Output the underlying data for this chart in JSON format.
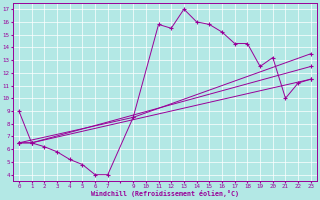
{
  "bg_color": "#b3e8e5",
  "line_color": "#990099",
  "grid_color": "#ffffff",
  "xlabel": "Windchill (Refroidissement éolien,°C)",
  "xlim": [
    -0.5,
    23.5
  ],
  "ylim": [
    3.5,
    17.5
  ],
  "line1_x": [
    0,
    1,
    2,
    3,
    4,
    5,
    6,
    7,
    9,
    11,
    12,
    13,
    14,
    15,
    16,
    17,
    18,
    19,
    20,
    21,
    22,
    23
  ],
  "line1_y": [
    9.0,
    6.5,
    6.2,
    5.8,
    5.2,
    4.8,
    4.0,
    4.0,
    8.5,
    15.8,
    15.5,
    17.0,
    16.0,
    15.8,
    15.2,
    14.3,
    14.3,
    12.5,
    13.2,
    10.0,
    11.2,
    11.5
  ],
  "line2_x": [
    0,
    1,
    23
  ],
  "line2_y": [
    6.5,
    6.5,
    11.5
  ],
  "line3_x": [
    0,
    1,
    23
  ],
  "line3_y": [
    6.5,
    6.5,
    12.5
  ],
  "line4_x": [
    0,
    9,
    23
  ],
  "line4_y": [
    6.5,
    8.5,
    13.5
  ],
  "xtick_skip": [
    8
  ]
}
